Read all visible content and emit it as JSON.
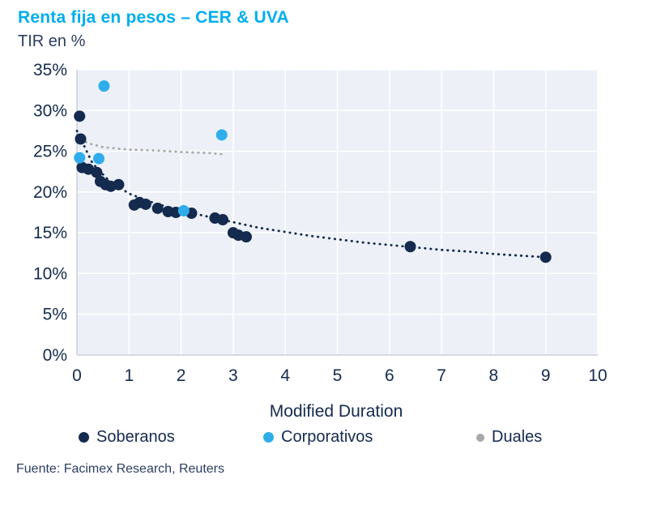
{
  "header": {
    "title": "Renta fija en pesos – CER & UVA",
    "subtitle": "TIR en %"
  },
  "footer": {
    "source": "Fuente: Facimex Research, Reuters"
  },
  "colors": {
    "title_accent": "#00aeef",
    "text_navy": "#142a4e",
    "plot_background": "#edf1f7",
    "gridline": "#ffffff",
    "axis_line": "#c9ced8",
    "soberanos": "#142a4e",
    "corporativos": "#2fadea",
    "duales": "#a8a8a8"
  },
  "chart_data": {
    "type": "scatter",
    "title": "Renta fija en pesos – CER & UVA",
    "subtitle": "TIR en %",
    "xlabel": "Modified Duration",
    "ylabel": "TIR en %",
    "xlim": [
      0,
      10
    ],
    "ylim": [
      0,
      35
    ],
    "xticks": [
      0,
      1,
      2,
      3,
      4,
      5,
      6,
      7,
      8,
      9,
      10
    ],
    "yticks": [
      0,
      5,
      10,
      15,
      20,
      25,
      30,
      35
    ],
    "ytick_suffix": "%",
    "grid": true,
    "legend_position": "bottom",
    "series": [
      {
        "name": "Soberanos",
        "color": "#142a4e",
        "marker_size": 7,
        "points": [
          [
            0.05,
            29.3
          ],
          [
            0.07,
            26.5
          ],
          [
            0.1,
            23.0
          ],
          [
            0.22,
            22.8
          ],
          [
            0.38,
            22.4
          ],
          [
            0.45,
            21.3
          ],
          [
            0.55,
            20.9
          ],
          [
            0.65,
            20.7
          ],
          [
            0.8,
            20.9
          ],
          [
            1.1,
            18.4
          ],
          [
            1.2,
            18.7
          ],
          [
            1.32,
            18.5
          ],
          [
            1.55,
            18.0
          ],
          [
            1.75,
            17.6
          ],
          [
            1.9,
            17.5
          ],
          [
            2.2,
            17.4
          ],
          [
            2.65,
            16.8
          ],
          [
            2.8,
            16.6
          ],
          [
            3.0,
            15.0
          ],
          [
            3.1,
            14.7
          ],
          [
            3.25,
            14.5
          ],
          [
            6.4,
            13.3
          ],
          [
            9.0,
            12.0
          ]
        ]
      },
      {
        "name": "Corporativos",
        "color": "#2fadea",
        "marker_size": 7,
        "points": [
          [
            0.05,
            24.2
          ],
          [
            0.42,
            24.1
          ],
          [
            0.52,
            33.0
          ],
          [
            2.05,
            17.7
          ],
          [
            2.78,
            27.0
          ]
        ]
      },
      {
        "name": "Duales",
        "color": "#a8a8a8",
        "marker_size": 4,
        "points": []
      }
    ],
    "trendlines": [
      {
        "series": "Soberanos",
        "color": "#142a4e",
        "points": [
          [
            0,
            27.5
          ],
          [
            0.3,
            23.5
          ],
          [
            0.6,
            21.5
          ],
          [
            1.0,
            19.8
          ],
          [
            1.5,
            18.6
          ],
          [
            2.0,
            17.7
          ],
          [
            2.5,
            17.0
          ],
          [
            3.0,
            16.3
          ],
          [
            3.5,
            15.6
          ],
          [
            4.0,
            15.1
          ],
          [
            4.5,
            14.6
          ],
          [
            5.0,
            14.2
          ],
          [
            5.5,
            13.8
          ],
          [
            6.0,
            13.5
          ],
          [
            6.5,
            13.2
          ],
          [
            7.0,
            12.9
          ],
          [
            7.5,
            12.7
          ],
          [
            8.0,
            12.4
          ],
          [
            8.5,
            12.2
          ],
          [
            9.0,
            12.0
          ]
        ]
      },
      {
        "series": "Duales",
        "color": "#a8a8a8",
        "points": [
          [
            0,
            27.0
          ],
          [
            0.2,
            26.0
          ],
          [
            0.5,
            25.5
          ],
          [
            1.0,
            25.2
          ],
          [
            1.5,
            25.1
          ],
          [
            2.0,
            24.9
          ],
          [
            2.5,
            24.8
          ],
          [
            2.85,
            24.6
          ]
        ]
      }
    ]
  }
}
